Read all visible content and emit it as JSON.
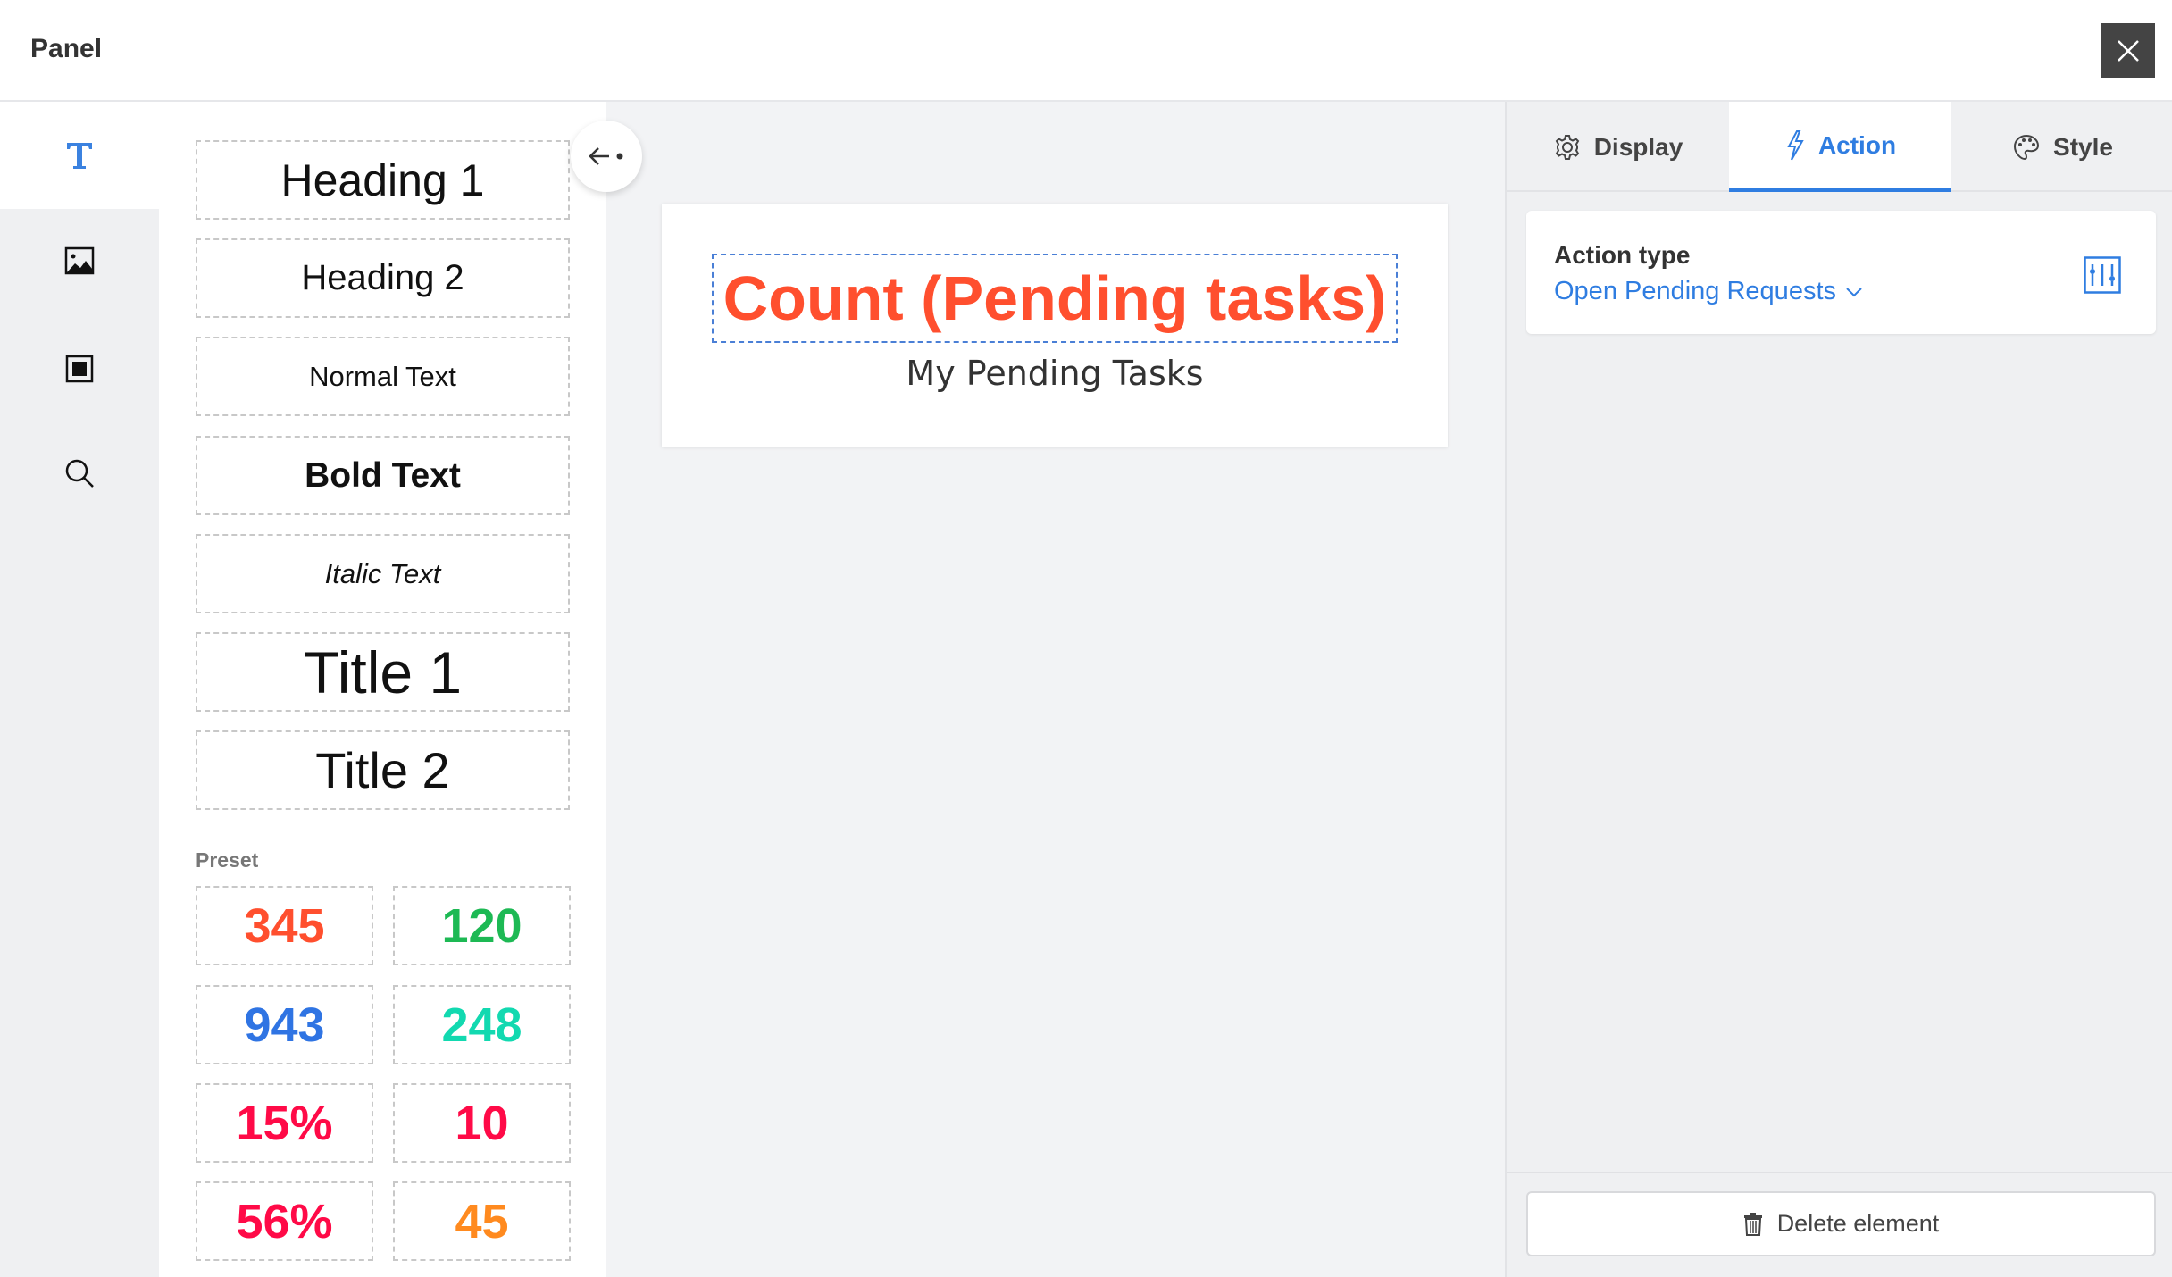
{
  "header": {
    "title": "Panel",
    "close_icon": "close-icon"
  },
  "rail": {
    "items": [
      {
        "name": "text",
        "icon": "text-icon",
        "active": true
      },
      {
        "name": "image",
        "icon": "image-icon"
      },
      {
        "name": "box",
        "icon": "square-icon"
      },
      {
        "name": "search",
        "icon": "search-icon"
      }
    ],
    "accent": "#3b82e0"
  },
  "palette": {
    "items": [
      "Heading 1",
      "Heading 2",
      "Normal Text",
      "Bold Text",
      "Italic Text",
      "Title 1",
      "Title 2"
    ],
    "preset_label": "Preset",
    "presets": [
      {
        "value": "345",
        "color": "#ff4f2e"
      },
      {
        "value": "120",
        "color": "#1db954"
      },
      {
        "value": "943",
        "color": "#2f74e3"
      },
      {
        "value": "248",
        "color": "#12d9b0"
      },
      {
        "value": "15%",
        "color": "#ff0a47"
      },
      {
        "value": "10",
        "color": "#ff0a47"
      },
      {
        "value": "56%",
        "color": "#ff0a47"
      },
      {
        "value": "45",
        "color": "#ff8a1f"
      }
    ]
  },
  "canvas": {
    "count_text": "Count (Pending tasks)",
    "count_color": "#ff4f2e",
    "subtitle": "My Pending Tasks"
  },
  "inspector": {
    "tabs": [
      {
        "label": "Display",
        "icon": "gear-icon"
      },
      {
        "label": "Action",
        "icon": "lightning-icon",
        "active": true
      },
      {
        "label": "Style",
        "icon": "palette-icon"
      }
    ],
    "action_type_label": "Action type",
    "action_type_value": "Open Pending Requests",
    "delete_label": "Delete element"
  }
}
